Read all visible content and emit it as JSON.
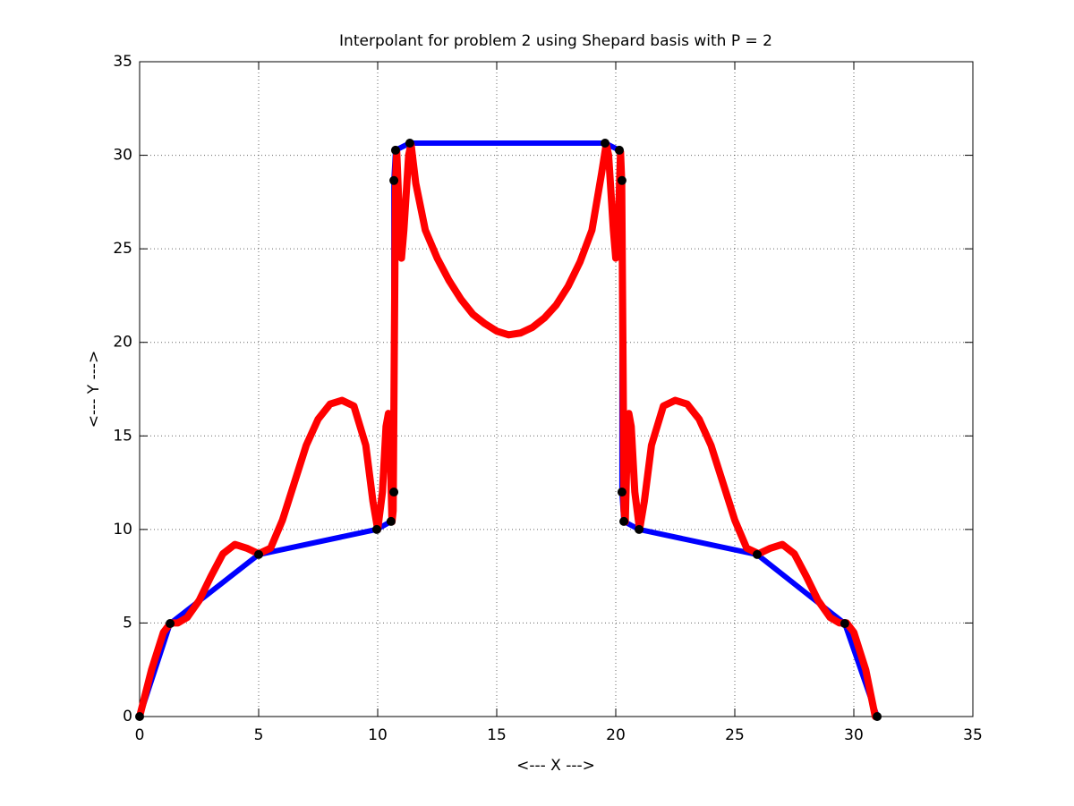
{
  "chart_data": {
    "type": "line",
    "title": "Interpolant for problem 2 using Shepard basis with P = 2",
    "x_label": "<--- X --->",
    "y_label": "<--- Y --->",
    "xlim": [
      0,
      35
    ],
    "ylim": [
      0,
      35
    ],
    "xticks": [
      0,
      5,
      10,
      15,
      20,
      25,
      30,
      35
    ],
    "yticks": [
      0,
      5,
      10,
      15,
      20,
      25,
      30,
      35
    ],
    "grid": true,
    "series": [
      {
        "color": "#0000ff",
        "marker_color": "#000000",
        "x": [
          0,
          1.28,
          5.0,
          9.96,
          10.56,
          10.68,
          10.68,
          10.75,
          11.35,
          19.55,
          20.15,
          20.26,
          20.26,
          20.34,
          20.98,
          25.94,
          29.62,
          30.98
        ],
        "y": [
          0,
          4.97,
          8.66,
          10.0,
          10.43,
          12.0,
          28.65,
          30.27,
          30.65,
          30.65,
          30.27,
          28.65,
          12.0,
          10.43,
          10.0,
          8.66,
          4.97,
          0
        ]
      },
      {
        "color": "#ff0000",
        "x": [
          0,
          0.5,
          1.0,
          1.3,
          1.6,
          2.0,
          2.5,
          3.0,
          3.5,
          4.0,
          4.5,
          5.0,
          5.5,
          6.0,
          6.5,
          7.0,
          7.5,
          8.0,
          8.5,
          9.0,
          9.5,
          9.8,
          10.0,
          10.2,
          10.35,
          10.45,
          10.55,
          10.6,
          10.65,
          10.7,
          10.75,
          10.8,
          10.9,
          11.0,
          11.1,
          11.3,
          11.4,
          11.6,
          12.0,
          12.5,
          13.0,
          13.5,
          14.0,
          14.5,
          15.0,
          15.5,
          16.0,
          16.5,
          17.0,
          17.5,
          18.0,
          18.5,
          19.0,
          19.4,
          19.6,
          19.7,
          19.9,
          20.0,
          20.1,
          20.2,
          20.25,
          20.3,
          20.35,
          20.4,
          20.45,
          20.55,
          20.65,
          20.8,
          21.0,
          21.2,
          21.5,
          22.0,
          22.5,
          23.0,
          23.5,
          24.0,
          24.5,
          25.0,
          25.5,
          26.0,
          26.5,
          27.0,
          27.5,
          28.0,
          28.5,
          29.0,
          29.4,
          29.7,
          30.0,
          30.5,
          30.9
        ],
        "y": [
          0,
          2.5,
          4.5,
          5.0,
          5.0,
          5.3,
          6.2,
          7.5,
          8.7,
          9.2,
          9.0,
          8.7,
          9.0,
          10.5,
          12.5,
          14.5,
          15.9,
          16.7,
          16.9,
          16.6,
          14.5,
          11.5,
          10.0,
          12.0,
          15.5,
          16.2,
          13.0,
          10.4,
          11.0,
          20.0,
          28.6,
          30.2,
          27.0,
          24.5,
          26.0,
          30.0,
          30.6,
          28.5,
          26.0,
          24.5,
          23.3,
          22.3,
          21.5,
          21.0,
          20.6,
          20.4,
          20.5,
          20.8,
          21.3,
          22.0,
          23.0,
          24.3,
          26.0,
          29.0,
          30.6,
          30.0,
          26.0,
          24.5,
          26.0,
          30.2,
          28.6,
          20.0,
          11.0,
          10.4,
          13.0,
          16.2,
          15.5,
          12.0,
          10.0,
          11.5,
          14.5,
          16.6,
          16.9,
          16.7,
          15.9,
          14.5,
          12.5,
          10.5,
          9.0,
          8.7,
          9.0,
          9.2,
          8.7,
          7.5,
          6.2,
          5.3,
          5.0,
          5.0,
          4.5,
          2.5,
          0
        ]
      }
    ]
  }
}
